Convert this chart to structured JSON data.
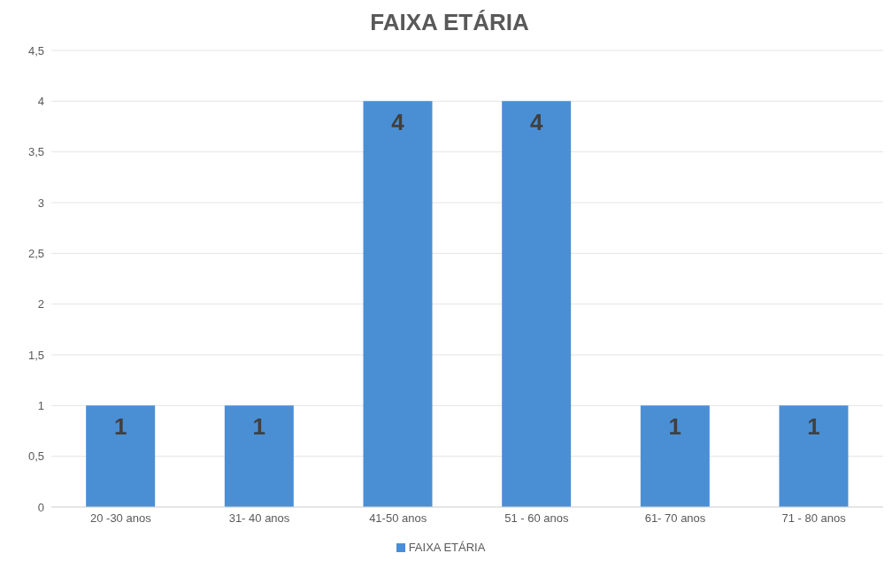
{
  "chart_data": {
    "type": "bar",
    "title": "FAIXA ETÁRIA",
    "categories": [
      "20 -30 anos",
      "31- 40 anos",
      "41-50 anos",
      "51 - 60 anos",
      "61- 70 anos",
      "71 - 80 anos"
    ],
    "series": [
      {
        "name": "FAIXA ETÁRIA",
        "color": "#4a8fd4",
        "values": [
          1,
          1,
          4,
          4,
          1,
          1
        ]
      }
    ],
    "ylim": [
      0,
      4.5
    ],
    "yticks": [
      0,
      {
        "value": 0.5,
        "label": "0,5"
      },
      1,
      {
        "value": 1.5,
        "label": "1,5"
      },
      2,
      {
        "value": 2.5,
        "label": "2,5"
      },
      3,
      {
        "value": 3.5,
        "label": "3,5"
      },
      4,
      {
        "value": 4.5,
        "label": "4,5"
      }
    ],
    "grid": "y",
    "legend": "bottom",
    "data_labels": true
  }
}
